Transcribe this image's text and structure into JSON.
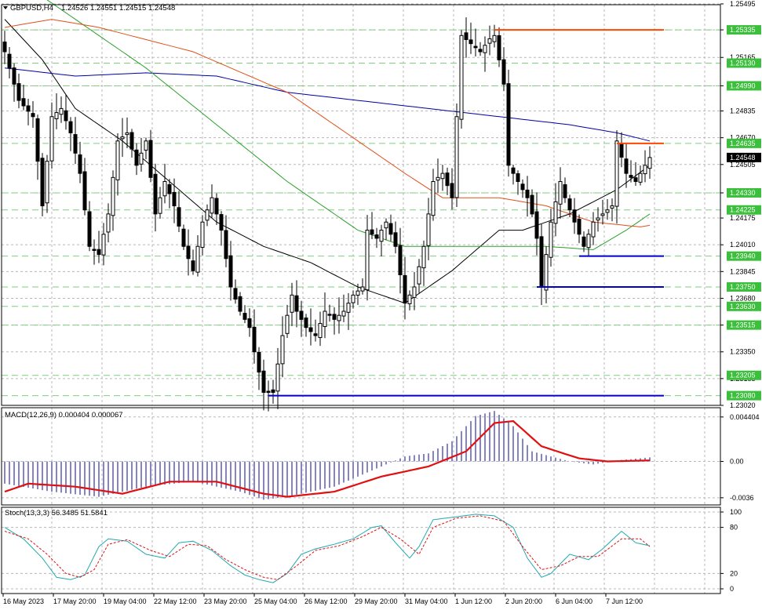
{
  "header": {
    "symbol": "GBPUSD,H4",
    "ohlc": "1.24526 1.24551 1.24515 1.24548"
  },
  "colors": {
    "background": "#ffffff",
    "grid": "#b8b8b8",
    "level_line": "#7fcf7f",
    "level_label_bg": "#3cbf3c",
    "candle": "#000000",
    "ma_black": "#000000",
    "ma_blue": "#0000a0",
    "ma_green": "#2ca02c",
    "ma_orange": "#e0501a",
    "resistance": "#ff4500",
    "support": "#0000c8",
    "macd_hist": "#0a0a8c",
    "macd_signal": "#e01010",
    "stoch_main": "#20a8b0",
    "stoch_signal": "#e01010",
    "current_price_bg": "#000000"
  },
  "chart_data": [
    {
      "type": "candlestick",
      "title": "GBPUSD,H4",
      "ylim": [
        1.2302,
        1.2549
      ],
      "yticks": [
        "1.25495",
        "1.25335",
        "1.25165",
        "1.24990",
        "1.24835",
        "1.24670",
        "1.24505",
        "1.24330",
        "1.24175",
        "1.24010",
        "1.23845",
        "1.23680",
        "1.23515",
        "1.23350",
        "1.23185",
        "1.23020"
      ],
      "current_price": "1.24548",
      "levels": [
        {
          "value": 1.25335,
          "label": "1.25335"
        },
        {
          "value": 1.2513,
          "label": "1.25130"
        },
        {
          "value": 1.2499,
          "label": "1.24990"
        },
        {
          "value": 1.24635,
          "label": "1.24635"
        },
        {
          "value": 1.2433,
          "label": "1.24330"
        },
        {
          "value": 1.24225,
          "label": "1.24225"
        },
        {
          "value": 1.2394,
          "label": "1.23940"
        },
        {
          "value": 1.2375,
          "label": "1.23750"
        },
        {
          "value": 1.2363,
          "label": "1.23630"
        },
        {
          "value": 1.23515,
          "label": "1.23515"
        },
        {
          "value": 1.23205,
          "label": "1.23205"
        },
        {
          "value": 1.2308,
          "label": "1.23080"
        }
      ],
      "x_labels": [
        "16 May 2023",
        "17 May 20:00",
        "19 May 04:00",
        "22 May 12:00",
        "23 May 20:00",
        "25 May 04:00",
        "26 May 12:00",
        "29 May 20:00",
        "31 May 04:00",
        "1 Jun 12:00",
        "2 Jun 20:00",
        "6 Jun 04:00",
        "7 Jun 12:00"
      ],
      "anchors": [
        [
          0,
          1.252
        ],
        [
          3,
          1.249
        ],
        [
          6,
          1.248
        ],
        [
          8,
          1.2425
        ],
        [
          10,
          1.248
        ],
        [
          12,
          1.2485
        ],
        [
          14,
          1.247
        ],
        [
          16,
          1.2445
        ],
        [
          18,
          1.24
        ],
        [
          20,
          1.2395
        ],
        [
          22,
          1.242
        ],
        [
          24,
          1.2465
        ],
        [
          26,
          1.247
        ],
        [
          28,
          1.245
        ],
        [
          30,
          1.2465
        ],
        [
          32,
          1.242
        ],
        [
          34,
          1.244
        ],
        [
          36,
          1.2425
        ],
        [
          38,
          1.24
        ],
        [
          40,
          1.2385
        ],
        [
          42,
          1.2415
        ],
        [
          44,
          1.243
        ],
        [
          46,
          1.241
        ],
        [
          48,
          1.2375
        ],
        [
          50,
          1.236
        ],
        [
          52,
          1.235
        ],
        [
          53,
          1.2335
        ],
        [
          55,
          1.231
        ],
        [
          57,
          1.231
        ],
        [
          59,
          1.2345
        ],
        [
          61,
          1.237
        ],
        [
          62,
          1.236
        ],
        [
          64,
          1.235
        ],
        [
          66,
          1.2345
        ],
        [
          68,
          1.236
        ],
        [
          70,
          1.2355
        ],
        [
          72,
          1.236
        ],
        [
          74,
          1.237
        ],
        [
          76,
          1.2375
        ],
        [
          77,
          1.241
        ],
        [
          79,
          1.2405
        ],
        [
          81,
          1.2415
        ],
        [
          83,
          1.24
        ],
        [
          85,
          1.2365
        ],
        [
          87,
          1.2375
        ],
        [
          89,
          1.24
        ],
        [
          91,
          1.244
        ],
        [
          93,
          1.2445
        ],
        [
          95,
          1.243
        ],
        [
          96,
          1.248
        ],
        [
          97,
          1.253
        ],
        [
          99,
          1.2525
        ],
        [
          101,
          1.252
        ],
        [
          103,
          1.2528
        ],
        [
          104,
          1.253
        ],
        [
          106,
          1.25
        ],
        [
          107,
          1.245
        ],
        [
          109,
          1.244
        ],
        [
          111,
          1.243
        ],
        [
          112,
          1.242
        ],
        [
          113,
          1.2405
        ],
        [
          114,
          1.2375
        ],
        [
          116,
          1.2415
        ],
        [
          118,
          1.244
        ],
        [
          119,
          1.243
        ],
        [
          121,
          1.2415
        ],
        [
          123,
          1.24
        ],
        [
          125,
          1.2415
        ],
        [
          127,
          1.242
        ],
        [
          129,
          1.2425
        ],
        [
          130,
          1.2465
        ],
        [
          132,
          1.2445
        ],
        [
          134,
          1.244
        ],
        [
          136,
          1.245
        ],
        [
          137,
          1.24548
        ]
      ],
      "moving_averages": [
        {
          "name": "MA black",
          "points": [
            [
              0,
              1.254
            ],
            [
              8,
              1.2515
            ],
            [
              15,
              1.2485
            ],
            [
              25,
              1.2465
            ],
            [
              35,
              1.244
            ],
            [
              45,
              1.2415
            ],
            [
              55,
              1.24
            ],
            [
              65,
              1.239
            ],
            [
              75,
              1.2375
            ],
            [
              85,
              1.2365
            ],
            [
              95,
              1.2385
            ],
            [
              105,
              1.241
            ],
            [
              110,
              1.241
            ],
            [
              120,
              1.242
            ],
            [
              130,
              1.2435
            ],
            [
              137,
              1.245
            ]
          ]
        },
        {
          "name": "MA blue",
          "points": [
            [
              0,
              1.251
            ],
            [
              15,
              1.2505
            ],
            [
              30,
              1.2507
            ],
            [
              45,
              1.2505
            ],
            [
              60,
              1.2495
            ],
            [
              75,
              1.249
            ],
            [
              90,
              1.2485
            ],
            [
              105,
              1.248
            ],
            [
              120,
              1.2475
            ],
            [
              130,
              1.247
            ],
            [
              137,
              1.2465
            ]
          ]
        },
        {
          "name": "MA green",
          "points": [
            [
              0,
              1.257
            ],
            [
              15,
              1.254
            ],
            [
              30,
              1.251
            ],
            [
              45,
              1.2475
            ],
            [
              60,
              1.244
            ],
            [
              75,
              1.241
            ],
            [
              85,
              1.24
            ],
            [
              95,
              1.24
            ],
            [
              105,
              1.24
            ],
            [
              115,
              1.24
            ],
            [
              125,
              1.2398
            ],
            [
              132,
              1.241
            ],
            [
              137,
              1.242
            ]
          ]
        },
        {
          "name": "MA orange",
          "points": [
            [
              0,
              1.2535
            ],
            [
              10,
              1.254
            ],
            [
              20,
              1.2535
            ],
            [
              40,
              1.252
            ],
            [
              60,
              1.2495
            ],
            [
              75,
              1.2465
            ],
            [
              85,
              1.2445
            ],
            [
              93,
              1.243
            ],
            [
              105,
              1.243
            ],
            [
              115,
              1.2425
            ],
            [
              125,
              1.2415
            ],
            [
              135,
              1.2412
            ],
            [
              137,
              1.2413
            ]
          ]
        }
      ],
      "trendlines": [
        {
          "role": "resistance",
          "from": [
            104,
            1.25335
          ],
          "to": [
            140,
            1.25335
          ]
        },
        {
          "role": "resistance",
          "from": [
            130,
            1.24635
          ],
          "to": [
            140,
            1.24635
          ]
        },
        {
          "role": "support",
          "from": [
            122,
            1.2394
          ],
          "to": [
            140,
            1.2394
          ]
        },
        {
          "role": "support",
          "from": [
            113,
            1.2375
          ],
          "to": [
            140,
            1.2375
          ]
        },
        {
          "role": "support",
          "from": [
            56,
            1.2308
          ],
          "to": [
            140,
            1.2308
          ]
        }
      ]
    },
    {
      "type": "bar",
      "title": "MACD(12,26,9) 0.000404 0.000067",
      "ylim": [
        -0.004,
        0.0047
      ],
      "yticks": [
        "0.004404",
        "0.00",
        "-0.0036"
      ],
      "histogram_anchors": [
        [
          0,
          -0.0022
        ],
        [
          10,
          -0.003
        ],
        [
          20,
          -0.0035
        ],
        [
          30,
          -0.0025
        ],
        [
          40,
          -0.002
        ],
        [
          50,
          -0.003
        ],
        [
          55,
          -0.0038
        ],
        [
          60,
          -0.0035
        ],
        [
          70,
          -0.0025
        ],
        [
          80,
          -0.0005
        ],
        [
          85,
          0.0005
        ],
        [
          90,
          0.0008
        ],
        [
          95,
          0.002
        ],
        [
          100,
          0.0045
        ],
        [
          104,
          0.005
        ],
        [
          108,
          0.0035
        ],
        [
          112,
          0.001
        ],
        [
          120,
          0.0
        ],
        [
          125,
          -0.0003
        ],
        [
          130,
          0.0001
        ],
        [
          137,
          0.0004
        ]
      ],
      "signal_anchors": [
        [
          0,
          -0.003
        ],
        [
          5,
          -0.0022
        ],
        [
          15,
          -0.0025
        ],
        [
          25,
          -0.0032
        ],
        [
          35,
          -0.002
        ],
        [
          45,
          -0.002
        ],
        [
          55,
          -0.0032
        ],
        [
          60,
          -0.0035
        ],
        [
          70,
          -0.003
        ],
        [
          80,
          -0.0015
        ],
        [
          90,
          -0.0005
        ],
        [
          98,
          0.001
        ],
        [
          104,
          0.0038
        ],
        [
          108,
          0.004
        ],
        [
          114,
          0.0015
        ],
        [
          122,
          0.0003
        ],
        [
          128,
          0.0
        ],
        [
          137,
          0.0001
        ]
      ]
    },
    {
      "type": "line",
      "title": "Stoch(13,3,3) 56.3485 51.5841",
      "ylim": [
        0,
        100
      ],
      "yticks": [
        "100",
        "80",
        "20",
        "0"
      ],
      "main_anchors": [
        [
          0,
          80
        ],
        [
          4,
          65
        ],
        [
          8,
          40
        ],
        [
          11,
          15
        ],
        [
          14,
          12
        ],
        [
          17,
          18
        ],
        [
          20,
          55
        ],
        [
          22,
          65
        ],
        [
          26,
          62
        ],
        [
          30,
          45
        ],
        [
          34,
          40
        ],
        [
          37,
          60
        ],
        [
          40,
          62
        ],
        [
          44,
          50
        ],
        [
          48,
          30
        ],
        [
          51,
          18
        ],
        [
          54,
          12
        ],
        [
          57,
          8
        ],
        [
          60,
          20
        ],
        [
          63,
          45
        ],
        [
          66,
          52
        ],
        [
          70,
          58
        ],
        [
          74,
          65
        ],
        [
          78,
          80
        ],
        [
          80,
          82
        ],
        [
          83,
          60
        ],
        [
          86,
          40
        ],
        [
          88,
          55
        ],
        [
          91,
          90
        ],
        [
          95,
          93
        ],
        [
          100,
          97
        ],
        [
          104,
          95
        ],
        [
          108,
          80
        ],
        [
          111,
          40
        ],
        [
          114,
          15
        ],
        [
          116,
          20
        ],
        [
          120,
          45
        ],
        [
          124,
          38
        ],
        [
          127,
          52
        ],
        [
          131,
          75
        ],
        [
          134,
          60
        ],
        [
          137,
          56
        ]
      ],
      "signal_anchors": [
        [
          0,
          75
        ],
        [
          5,
          65
        ],
        [
          9,
          45
        ],
        [
          13,
          20
        ],
        [
          16,
          15
        ],
        [
          19,
          25
        ],
        [
          22,
          58
        ],
        [
          26,
          64
        ],
        [
          31,
          50
        ],
        [
          35,
          42
        ],
        [
          39,
          58
        ],
        [
          43,
          56
        ],
        [
          47,
          38
        ],
        [
          51,
          25
        ],
        [
          55,
          15
        ],
        [
          58,
          12
        ],
        [
          62,
          30
        ],
        [
          66,
          50
        ],
        [
          71,
          56
        ],
        [
          76,
          68
        ],
        [
          80,
          80
        ],
        [
          84,
          65
        ],
        [
          88,
          45
        ],
        [
          91,
          80
        ],
        [
          96,
          92
        ],
        [
          101,
          95
        ],
        [
          106,
          88
        ],
        [
          110,
          55
        ],
        [
          114,
          25
        ],
        [
          118,
          30
        ],
        [
          122,
          42
        ],
        [
          126,
          42
        ],
        [
          131,
          65
        ],
        [
          135,
          65
        ],
        [
          137,
          55
        ]
      ]
    }
  ]
}
